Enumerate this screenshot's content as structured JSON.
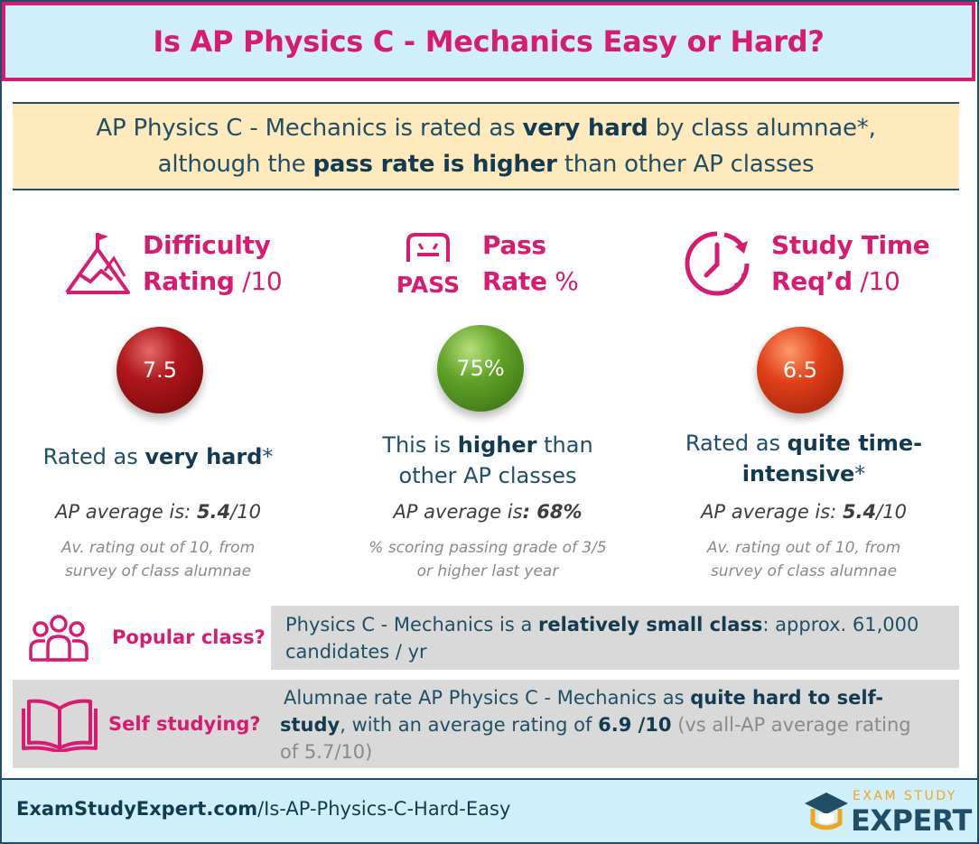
{
  "title": "Is AP Physics C - Mechanics Easy or Hard?",
  "summary": {
    "line1_pre": "AP Physics C - Mechanics is rated as ",
    "line1_bold": "very hard",
    "line1_post": " by class alumnae*,",
    "line2_pre": "although the ",
    "line2_bold": "pass rate is higher",
    "line2_post": " than other AP classes"
  },
  "metrics": {
    "difficulty": {
      "icon": "mountain-flag-icon",
      "label_line1": "Difficulty",
      "label_line2": "Rating",
      "unit": " /10",
      "value": "7.5",
      "desc_pre": "Rated as ",
      "desc_bold": "very hard",
      "desc_post": "*",
      "avg_pre": "AP average is: ",
      "avg_bold": "5.4",
      "avg_post": "/10",
      "note_line1": "Av. rating out of 10, from",
      "note_line2": "survey of class alumnae",
      "color": "#9b1016"
    },
    "pass": {
      "icon": "pass-badge-icon",
      "icon_text": "PASS",
      "label_line1": "Pass",
      "label_line2": "Rate",
      "unit": " %",
      "value": "75%",
      "desc_line1_pre": "This is ",
      "desc_line1_bold": "higher",
      "desc_line1_post": " than",
      "desc_line2": "other AP classes",
      "avg_pre": "AP average is",
      "avg_bold": ": 68%",
      "note_line1": "% scoring passing grade of 3/5",
      "note_line2": "or higher last year",
      "color": "#5c9d27"
    },
    "study": {
      "icon": "clock-timer-icon",
      "label_line1": "Study Time",
      "label_line2": "Req’d",
      "unit": " /10",
      "value": "6.5",
      "desc_line1_pre": "Rated as ",
      "desc_line1_bold": "quite time-",
      "desc_line2_bold": "intensive",
      "desc_line2_post": "*",
      "avg_pre": "AP average is: ",
      "avg_bold": "5.4",
      "avg_post": "/10",
      "note_line1": "Av. rating out of 10, from",
      "note_line2": "survey of class alumnae",
      "color": "#d8401a"
    }
  },
  "popular": {
    "icon": "people-group-icon",
    "label": "Popular class?",
    "text_pre": "Physics C - Mechanics is a ",
    "text_bold": "relatively small class",
    "text_post": ": approx. 61,000",
    "text_line2": "candidates / yr"
  },
  "self_study": {
    "icon": "open-book-icon",
    "label": "Self studying?",
    "line1_pre": "Alumnae rate AP Physics C - Mechanics as ",
    "line1_bold": "quite hard to self-",
    "line2_bold": "study",
    "line2_mid": ", with an average rating of ",
    "line2_bold2": "6.9 /10",
    "line2_grey": " (vs all-AP average rating",
    "line3_grey": "of 5.7/10)"
  },
  "footer": {
    "url_bold": "ExamStudyExpert.com",
    "url_rest": "/Is-AP-Physics-C-Hard-Easy",
    "brand_top": "EXAM STUDY",
    "brand_main": "EXPERT",
    "brand_icon": "graduation-cap-icon"
  },
  "colors": {
    "accent": "#d81b72",
    "navy": "#1f4e66",
    "summary_bg": "#fde9bc",
    "header_bg": "#cfeffa",
    "band_bg": "#d9d9d9",
    "brand_gold": "#f2a51c"
  }
}
